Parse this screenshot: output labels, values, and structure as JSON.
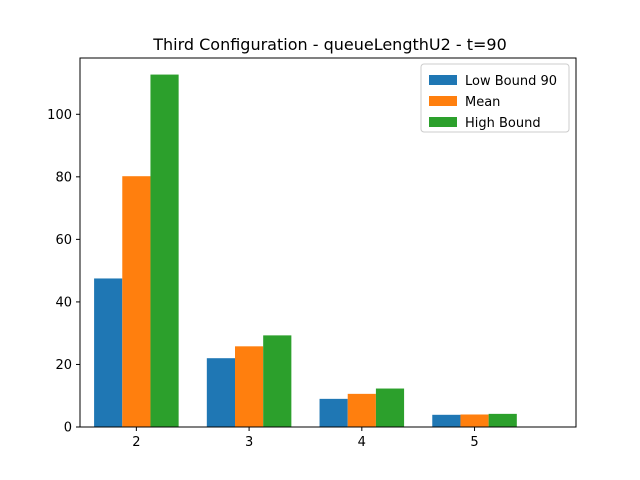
{
  "chart_data": {
    "type": "bar",
    "title": "Third Configuration - queueLengthU2 - t=90",
    "xlabel": "",
    "ylabel": "",
    "categories": [
      "2",
      "3",
      "4",
      "5"
    ],
    "series": [
      {
        "name": "Low Bound 90",
        "color": "#1f77b4",
        "values": [
          47.5,
          22.0,
          9.0,
          3.9
        ]
      },
      {
        "name": "Mean",
        "color": "#ff7f0e",
        "values": [
          80.2,
          25.8,
          10.6,
          4.0
        ]
      },
      {
        "name": "High Bound",
        "color": "#2ca02c",
        "values": [
          112.7,
          29.3,
          12.3,
          4.2
        ]
      }
    ],
    "yticks": [
      0,
      20,
      40,
      60,
      80,
      100
    ],
    "ylim": [
      0,
      118
    ],
    "xlim": [
      1.5,
      5.9
    ],
    "grid": false,
    "legend_position": "top-right"
  }
}
